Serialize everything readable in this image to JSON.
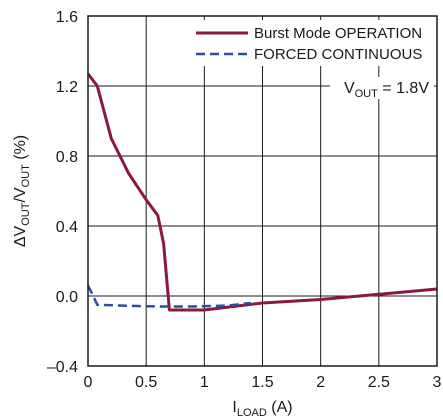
{
  "chart_data": {
    "type": "line",
    "xlabel": {
      "main": "I",
      "sub": "LOAD",
      "unit": " (A)"
    },
    "ylabel": {
      "p1": "ΔV",
      "s1": "OUT",
      "p2": "/V",
      "s2": "OUT",
      "p3": " (%)"
    },
    "xlim": [
      0,
      3
    ],
    "ylim": [
      -0.4,
      1.6
    ],
    "x_ticks": [
      0,
      0.5,
      1,
      1.5,
      2,
      2.5,
      3
    ],
    "x_tick_labels": [
      "0",
      "0.5",
      "1",
      "1.5",
      "2",
      "2.5",
      "3"
    ],
    "y_ticks": [
      -0.4,
      0,
      0.4,
      0.8,
      1.2,
      1.6
    ],
    "y_tick_labels": [
      "–0.4",
      "0.0",
      "0.4",
      "0.8",
      "1.2",
      "1.6"
    ],
    "grid": true,
    "legend_position": "top-right",
    "annotation": {
      "prefix": "V",
      "sub": "OUT",
      "suffix": " = 1.8V"
    },
    "series": [
      {
        "name": "Burst Mode OPERATION",
        "color": "#8b1a3a",
        "style": "solid",
        "x": [
          0,
          0.08,
          0.2,
          0.35,
          0.5,
          0.6,
          0.65,
          0.7,
          0.8,
          1.0,
          1.5,
          2.0,
          2.5,
          3.0
        ],
        "y": [
          1.27,
          1.2,
          0.9,
          0.7,
          0.55,
          0.46,
          0.3,
          -0.08,
          -0.08,
          -0.08,
          -0.04,
          -0.02,
          0.01,
          0.04
        ]
      },
      {
        "name": "FORCED CONTINUOUS",
        "color": "#2a4f9e",
        "style": "dashed",
        "x": [
          0,
          0.03,
          0.08,
          0.3,
          0.6,
          0.9,
          1.2,
          1.4
        ],
        "y": [
          0.06,
          0.02,
          -0.05,
          -0.055,
          -0.06,
          -0.06,
          -0.055,
          -0.04
        ]
      }
    ]
  }
}
